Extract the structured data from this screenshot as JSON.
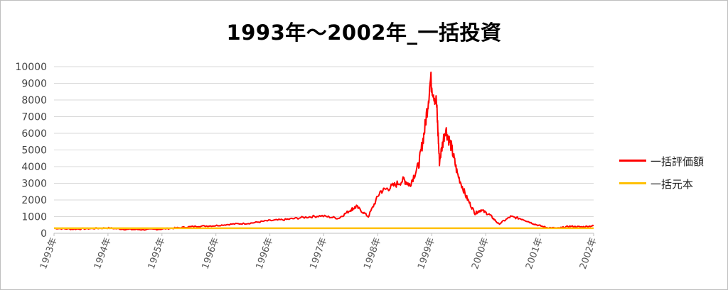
{
  "chart_data": {
    "type": "line",
    "title": "1993年～2002年_一括投資",
    "xlabel": "",
    "ylabel": "",
    "ylim": [
      0,
      10000
    ],
    "yticks": [
      0,
      1000,
      2000,
      3000,
      4000,
      5000,
      6000,
      7000,
      8000,
      9000,
      10000
    ],
    "xlim": [
      1993.0,
      2002.1
    ],
    "xtick_labels": [
      "1993年",
      "1994年",
      "1995年",
      "1996年",
      "1996年",
      "1997年",
      "1998年",
      "1999年",
      "2000年",
      "2001年",
      "2002年"
    ],
    "grid": true,
    "legend": "right",
    "series": [
      {
        "name": "一括評価額",
        "color": "#ff0000",
        "x": [
          1993.0,
          1993.3,
          1993.6,
          1993.9,
          1994.2,
          1994.5,
          1994.8,
          1995.1,
          1995.4,
          1995.7,
          1996.0,
          1996.3,
          1996.6,
          1996.9,
          1997.2,
          1997.5,
          1997.8,
          1998.0,
          1998.1,
          1998.3,
          1998.5,
          1998.7,
          1998.9,
          1999.0,
          1999.15,
          1999.25,
          1999.35,
          1999.45,
          1999.5,
          1999.6,
          1999.7,
          1999.8,
          1999.95,
          2000.1,
          2000.2,
          2000.35,
          2000.5,
          2000.7,
          2000.9,
          2001.1,
          2001.3,
          2001.5,
          2001.7,
          2001.9,
          2002.1
        ],
        "values": [
          300,
          250,
          280,
          320,
          240,
          220,
          250,
          330,
          420,
          450,
          550,
          600,
          750,
          820,
          950,
          1050,
          900,
          1400,
          1600,
          1000,
          2500,
          2800,
          3200,
          2900,
          4100,
          6200,
          9200,
          7800,
          4300,
          6300,
          5200,
          3600,
          2200,
          1200,
          1400,
          1100,
          550,
          1000,
          850,
          550,
          350,
          300,
          420,
          380,
          450
        ]
      },
      {
        "name": "一括元本",
        "color": "#ffc000",
        "x": [
          1993.0,
          2002.1
        ],
        "values": [
          300,
          300
        ]
      }
    ]
  }
}
